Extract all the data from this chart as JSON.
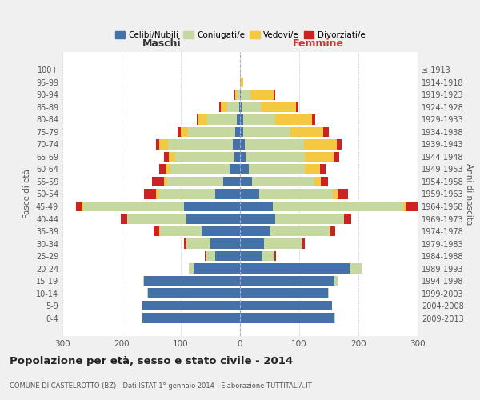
{
  "age_groups": [
    "0-4",
    "5-9",
    "10-14",
    "15-19",
    "20-24",
    "25-29",
    "30-34",
    "35-39",
    "40-44",
    "45-49",
    "50-54",
    "55-59",
    "60-64",
    "65-69",
    "70-74",
    "75-79",
    "80-84",
    "85-89",
    "90-94",
    "95-99",
    "100+"
  ],
  "birth_years": [
    "2009-2013",
    "2004-2008",
    "1999-2003",
    "1994-1998",
    "1989-1993",
    "1984-1988",
    "1979-1983",
    "1974-1978",
    "1969-1973",
    "1964-1968",
    "1959-1963",
    "1954-1958",
    "1949-1953",
    "1944-1948",
    "1939-1943",
    "1934-1938",
    "1929-1933",
    "1924-1928",
    "1919-1923",
    "1914-1918",
    "≤ 1913"
  ],
  "males": {
    "celibi": [
      165,
      165,
      155,
      162,
      78,
      42,
      50,
      65,
      90,
      95,
      42,
      28,
      18,
      10,
      12,
      8,
      5,
      2,
      0,
      0,
      0
    ],
    "coniugati": [
      1,
      1,
      2,
      2,
      8,
      15,
      40,
      70,
      100,
      170,
      95,
      95,
      100,
      100,
      110,
      80,
      50,
      20,
      5,
      0,
      0
    ],
    "vedovi": [
      0,
      0,
      0,
      0,
      0,
      0,
      0,
      1,
      1,
      2,
      5,
      5,
      8,
      10,
      15,
      12,
      15,
      10,
      3,
      0,
      0
    ],
    "divorziati": [
      0,
      0,
      0,
      0,
      1,
      2,
      5,
      10,
      10,
      10,
      20,
      20,
      10,
      8,
      5,
      5,
      3,
      3,
      1,
      0,
      0
    ]
  },
  "females": {
    "nubili": [
      160,
      155,
      148,
      160,
      185,
      38,
      40,
      52,
      60,
      55,
      32,
      20,
      15,
      10,
      8,
      5,
      5,
      3,
      2,
      0,
      0
    ],
    "coniugate": [
      1,
      1,
      2,
      5,
      20,
      20,
      65,
      100,
      115,
      220,
      125,
      105,
      95,
      100,
      100,
      80,
      55,
      32,
      15,
      2,
      0
    ],
    "vedove": [
      0,
      0,
      0,
      0,
      0,
      0,
      0,
      1,
      1,
      5,
      8,
      12,
      25,
      48,
      55,
      55,
      62,
      60,
      40,
      3,
      0
    ],
    "divorziate": [
      0,
      0,
      0,
      0,
      1,
      3,
      5,
      8,
      12,
      28,
      18,
      12,
      10,
      10,
      8,
      10,
      5,
      3,
      2,
      0,
      0
    ]
  },
  "colors": {
    "celibi": "#4472a8",
    "coniugati": "#c5d8a0",
    "vedovi": "#f5c842",
    "divorziati": "#cc2222"
  },
  "xlim": [
    -300,
    300
  ],
  "xticks": [
    -300,
    -200,
    -100,
    0,
    100,
    200,
    300
  ],
  "xticklabels": [
    "300",
    "200",
    "100",
    "0",
    "100",
    "200",
    "300"
  ],
  "title": "Popolazione per età, sesso e stato civile - 2014",
  "subtitle": "COMUNE DI CASTELROTTO (BZ) - Dati ISTAT 1° gennaio 2014 - Elaborazione TUTTITALIA.IT",
  "ylabel_left": "Fasce di età",
  "ylabel_right": "Anni di nascita",
  "header_maschi": "Maschi",
  "header_femmine": "Femmine",
  "bg_color": "#f0f0f0",
  "plot_bg": "#ffffff",
  "grid_color": "#cccccc"
}
